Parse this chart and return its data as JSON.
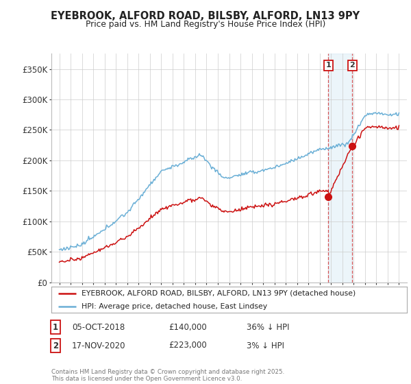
{
  "title": "EYEBROOK, ALFORD ROAD, BILSBY, ALFORD, LN13 9PY",
  "subtitle": "Price paid vs. HM Land Registry's House Price Index (HPI)",
  "ylabel_ticks": [
    "£0",
    "£50K",
    "£100K",
    "£150K",
    "£200K",
    "£250K",
    "£300K",
    "£350K"
  ],
  "ytick_values": [
    0,
    50000,
    100000,
    150000,
    200000,
    250000,
    300000,
    350000
  ],
  "ylim": [
    0,
    375000
  ],
  "sale1": {
    "date": "05-OCT-2018",
    "price": 140000,
    "label": "1",
    "note": "36% ↓ HPI"
  },
  "sale2": {
    "date": "17-NOV-2020",
    "price": 223000,
    "label": "2",
    "note": "3% ↓ HPI"
  },
  "sale1_year": 2018.77,
  "sale2_year": 2020.88,
  "hpi_color": "#6aafd6",
  "price_color": "#cc1111",
  "legend_price_label": "EYEBROOK, ALFORD ROAD, BILSBY, ALFORD, LN13 9PY (detached house)",
  "legend_hpi_label": "HPI: Average price, detached house, East Lindsey",
  "footer": "Contains HM Land Registry data © Crown copyright and database right 2025.\nThis data is licensed under the Open Government Licence v3.0.",
  "background_color": "#ffffff",
  "grid_color": "#cccccc"
}
